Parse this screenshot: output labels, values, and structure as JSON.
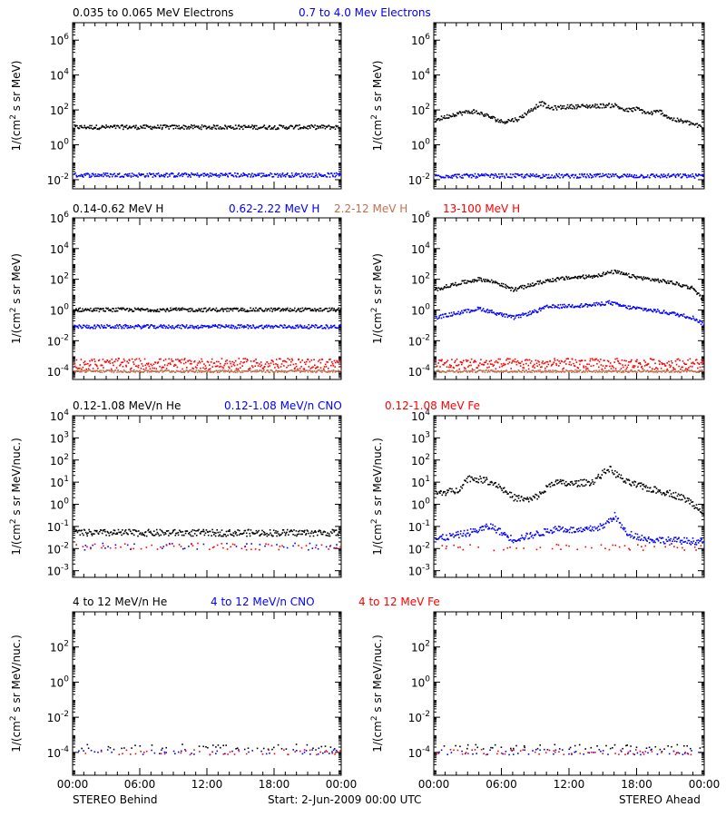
{
  "chart_data": [
    {
      "type": "scatter",
      "panel": "electrons-behind",
      "y_scale": "log",
      "ylim": [
        0.003,
        10000000
      ],
      "yticks": [
        "10^-2",
        "10^0",
        "10^2",
        "10^4",
        "10^6"
      ],
      "xlabel": "",
      "ylabel": "1/(cm^2 s sr MeV)",
      "series": [
        {
          "name": "0.035 to 0.065 MeV Electrons",
          "color": "#000000",
          "level": 10,
          "profile": []
        },
        {
          "name": "0.7 to 4.0 Mev Electrons",
          "color": "#0000ff",
          "level": 0.018,
          "profile": []
        }
      ]
    },
    {
      "type": "scatter",
      "panel": "electrons-ahead",
      "y_scale": "log",
      "ylim": [
        0.003,
        10000000
      ],
      "yticks": [
        "10^-2",
        "10^0",
        "10^2",
        "10^4",
        "10^6"
      ],
      "ylabel": "1/(cm^2 s sr MeV)",
      "series": [
        {
          "color": "#000000",
          "profile": [
            [
              0,
              25
            ],
            [
              2,
              60
            ],
            [
              3.5,
              80
            ],
            [
              4.5,
              50
            ],
            [
              6,
              20
            ],
            [
              7.5,
              30
            ],
            [
              8.5,
              90
            ],
            [
              9.5,
              250
            ],
            [
              10.2,
              120
            ],
            [
              12,
              150
            ],
            [
              14,
              160
            ],
            [
              16,
              180
            ],
            [
              17,
              90
            ],
            [
              18,
              110
            ],
            [
              19,
              60
            ],
            [
              20,
              80
            ],
            [
              21,
              30
            ],
            [
              23,
              15
            ],
            [
              24,
              8
            ]
          ]
        },
        {
          "color": "#0000ff",
          "level": 0.016,
          "profile": []
        }
      ]
    },
    {
      "type": "scatter",
      "panel": "protons-behind",
      "y_scale": "log",
      "ylim": [
        3e-05,
        1000000
      ],
      "yticks": [
        "10^-4",
        "10^-2",
        "10^0",
        "10^2",
        "10^4",
        "10^6"
      ],
      "ylabel": "1/(cm^2 s sr MeV)",
      "series": [
        {
          "name": "0.14-0.62 MeV H",
          "color": "#000000",
          "level": 1.0,
          "profile": []
        },
        {
          "name": "0.62-2.22 MeV H",
          "color": "#0000ff",
          "level": 0.08,
          "profile": []
        },
        {
          "name": "2.2-12 MeV H",
          "color": "#c07050",
          "level": 0.0001,
          "profile": []
        },
        {
          "name": "13-100 MeV H",
          "color": "#ff0000",
          "level": 0.0003,
          "profile": []
        }
      ]
    },
    {
      "type": "scatter",
      "panel": "protons-ahead",
      "y_scale": "log",
      "ylim": [
        3e-05,
        1000000
      ],
      "yticks": [
        "10^-4",
        "10^-2",
        "10^0",
        "10^2",
        "10^4",
        "10^6"
      ],
      "ylabel": "1/(cm^2 s sr MeV)",
      "series": [
        {
          "color": "#000000",
          "profile": [
            [
              0,
              20
            ],
            [
              2,
              50
            ],
            [
              4,
              100
            ],
            [
              5.5,
              60
            ],
            [
              7,
              20
            ],
            [
              8.5,
              40
            ],
            [
              10,
              80
            ],
            [
              12,
              120
            ],
            [
              14,
              150
            ],
            [
              16,
              300
            ],
            [
              17.5,
              150
            ],
            [
              19,
              100
            ],
            [
              21,
              60
            ],
            [
              23,
              25
            ],
            [
              24,
              3
            ]
          ]
        },
        {
          "color": "#0000ff",
          "profile": [
            [
              0,
              0.3
            ],
            [
              2,
              0.6
            ],
            [
              4,
              1.2
            ],
            [
              5.5,
              0.6
            ],
            [
              7,
              0.3
            ],
            [
              9,
              0.8
            ],
            [
              10,
              1.5
            ],
            [
              12,
              1.8
            ],
            [
              14,
              2.0
            ],
            [
              15.5,
              3.0
            ],
            [
              17,
              1.5
            ],
            [
              19,
              1.0
            ],
            [
              21,
              0.6
            ],
            [
              23,
              0.3
            ],
            [
              24,
              0.1
            ]
          ]
        },
        {
          "color": "#c07050",
          "level": 0.0001,
          "profile": []
        },
        {
          "color": "#ff0000",
          "level": 0.0003,
          "profile": []
        }
      ]
    },
    {
      "type": "scatter",
      "panel": "heavy-behind",
      "y_scale": "log",
      "ylim": [
        0.0005,
        10000
      ],
      "yticks": [
        "10^-3",
        "10^-2",
        "10^-1",
        "10^0",
        "10^1",
        "10^2",
        "10^3",
        "10^4"
      ],
      "ylabel": "1/(cm^2 s sr MeV/nuc.)",
      "series": [
        {
          "name": "0.12-1.08 MeV/n He",
          "color": "#000000",
          "level": 0.05,
          "profile": []
        },
        {
          "name": "0.12-1.08 MeV/n CNO",
          "color": "#0000ff",
          "level": 0.012,
          "profile": []
        },
        {
          "name": "0.12-1.08 MeV Fe",
          "color": "#ff0000",
          "level": 0.012,
          "profile": []
        }
      ]
    },
    {
      "type": "scatter",
      "panel": "heavy-ahead",
      "y_scale": "log",
      "ylim": [
        0.0005,
        10000
      ],
      "yticks": [
        "10^-3",
        "10^-2",
        "10^-1",
        "10^0",
        "10^1",
        "10^2",
        "10^3",
        "10^4"
      ],
      "ylabel": "1/(cm^2 s sr MeV/nuc.)",
      "series": [
        {
          "color": "#000000",
          "profile": [
            [
              0,
              3
            ],
            [
              2,
              4
            ],
            [
              3,
              15
            ],
            [
              4.5,
              12
            ],
            [
              5.5,
              8
            ],
            [
              7,
              2
            ],
            [
              8.5,
              1.5
            ],
            [
              9.5,
              3
            ],
            [
              10.5,
              10
            ],
            [
              12,
              8
            ],
            [
              14,
              10
            ],
            [
              15.5,
              40
            ],
            [
              17,
              10
            ],
            [
              19,
              5
            ],
            [
              21,
              3
            ],
            [
              22.5,
              1.5
            ],
            [
              24,
              0.4
            ]
          ]
        },
        {
          "color": "#0000ff",
          "profile": [
            [
              0,
              0.025
            ],
            [
              3,
              0.05
            ],
            [
              5,
              0.1
            ],
            [
              7,
              0.025
            ],
            [
              9.5,
              0.05
            ],
            [
              11,
              0.08
            ],
            [
              13,
              0.06
            ],
            [
              15,
              0.1
            ],
            [
              16,
              0.3
            ],
            [
              17,
              0.05
            ],
            [
              19,
              0.025
            ],
            [
              24,
              0.02
            ]
          ]
        },
        {
          "color": "#ff0000",
          "level": 0.011,
          "profile": []
        }
      ]
    },
    {
      "type": "scatter",
      "panel": "energetic-behind",
      "y_scale": "log",
      "ylim": [
        5e-06,
        10000
      ],
      "yticks": [
        "10^-4",
        "10^-2",
        "10^0",
        "10^2"
      ],
      "ylabel": "1/(cm^2 s sr MeV/nuc.)",
      "series": [
        {
          "name": "4 to 12 MeV/n He",
          "color": "#000000",
          "level": 0.0002,
          "profile": []
        },
        {
          "name": "4 to 12 MeV/n CNO",
          "color": "#0000ff",
          "level": 0.0001,
          "profile": []
        },
        {
          "name": "4 to 12 MeV Fe",
          "color": "#ff0000",
          "level": 0.0001,
          "profile": []
        }
      ]
    },
    {
      "type": "scatter",
      "panel": "energetic-ahead",
      "y_scale": "log",
      "ylim": [
        5e-06,
        10000
      ],
      "yticks": [
        "10^-4",
        "10^-2",
        "10^0",
        "10^2"
      ],
      "ylabel": "1/(cm^2 s sr MeV/nuc.)",
      "series": [
        {
          "color": "#000000",
          "level": 0.0002,
          "profile": []
        },
        {
          "color": "#0000ff",
          "level": 0.0001,
          "profile": []
        },
        {
          "color": "#ff0000",
          "level": 0.0001,
          "profile": []
        }
      ]
    }
  ],
  "x_axis": {
    "range_hours": [
      0,
      24
    ],
    "ticks": [
      "00:00",
      "06:00",
      "12:00",
      "18:00",
      "00:00"
    ]
  },
  "footer": {
    "left": "STEREO Behind",
    "center": "Start:  2-Jun-2009 00:00 UTC",
    "right": "STEREO Ahead"
  }
}
